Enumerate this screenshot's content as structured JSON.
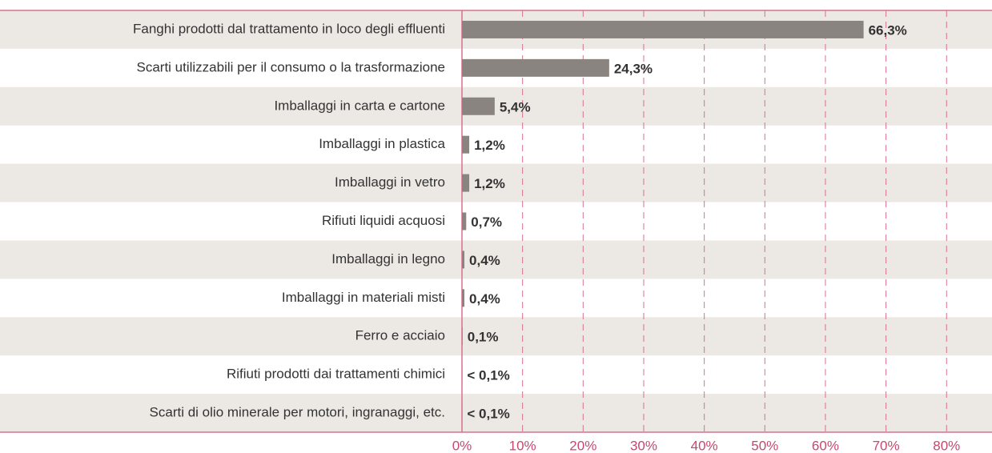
{
  "chart_data": {
    "type": "barh",
    "categories": [
      "Fanghi prodotti dal trattamento in loco degli effluenti",
      "Scarti utilizzabili per il consumo o la trasformazione",
      "Imballaggi in carta e cartone",
      "Imballaggi in plastica",
      "Imballaggi in vetro",
      "Rifiuti liquidi acquosi",
      "Imballaggi in legno",
      "Imballaggi in  materiali misti",
      "Ferro e acciaio",
      "Rifiuti prodotti dai trattamenti chimici",
      "Scarti di olio minerale per motori, ingranaggi, etc."
    ],
    "values": [
      66.3,
      24.3,
      5.4,
      1.2,
      1.2,
      0.7,
      0.4,
      0.4,
      0.1,
      0.05,
      0.05
    ],
    "value_labels": [
      "66,3%",
      "24,3%",
      "5,4%",
      "1,2%",
      "1,2%",
      "0,7%",
      "0,4%",
      "0,4%",
      "0,1%",
      "< 0,1%",
      "< 0,1%"
    ],
    "color": "#8a8480",
    "xlim": [
      0,
      87.5
    ],
    "xticks": [
      {
        "value": 0,
        "label": "0%"
      },
      {
        "value": 10,
        "label": "10%"
      },
      {
        "value": 20,
        "label": "20%"
      },
      {
        "value": 30,
        "label": "30%"
      },
      {
        "value": 40,
        "label": "40%"
      },
      {
        "value": 50,
        "label": "50%"
      },
      {
        "value": 60,
        "label": "60%"
      },
      {
        "value": 70,
        "label": "70%"
      },
      {
        "value": 80,
        "label": "80%"
      }
    ],
    "grid": true
  }
}
